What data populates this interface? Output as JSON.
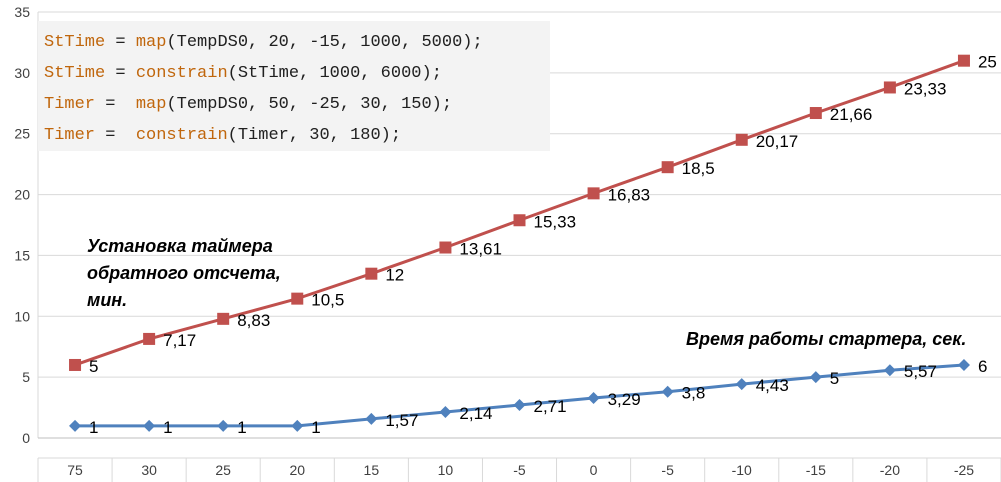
{
  "chart_data": {
    "type": "line",
    "categories": [
      "75",
      "30",
      "25",
      "20",
      "15",
      "10",
      "-5",
      "0",
      "-5",
      "-10",
      "-15",
      "-20",
      "-25"
    ],
    "ylim": [
      0,
      35
    ],
    "y_ticks": [
      "0",
      "5",
      "10",
      "15",
      "20",
      "25",
      "30",
      "35"
    ],
    "grid": "horizontal",
    "series": [
      {
        "name": "Установка таймера обратного отсчета, мин.",
        "color": "#c0504d",
        "marker": "square",
        "values": [
          5,
          7.17,
          8.83,
          10.5,
          12,
          13.61,
          15.33,
          16.83,
          18.5,
          20.17,
          21.66,
          23.33,
          25
        ],
        "labels": [
          "5",
          "7,17",
          "8,83",
          "10,5",
          "12",
          "13,61",
          "15,33",
          "16,83",
          "18,5",
          "20,17",
          "21,66",
          "23,33",
          "25"
        ],
        "y_position": [
          6,
          8.14,
          9.79,
          11.45,
          13.5,
          15.65,
          17.89,
          20.1,
          22.25,
          24.5,
          26.7,
          28.8,
          31
        ]
      },
      {
        "name": "Время работы стартера, сек.",
        "color": "#4f81bd",
        "marker": "diamond",
        "values": [
          1,
          1,
          1,
          1,
          1.57,
          2.14,
          2.71,
          3.29,
          3.8,
          4.43,
          5,
          5.57,
          6
        ],
        "labels": [
          "1",
          "1",
          "1",
          "1",
          "1,57",
          "2,14",
          "2,71",
          "3,29",
          "3,8",
          "4,43",
          "5",
          "5,57",
          "6"
        ]
      }
    ]
  },
  "code_block": {
    "lines": [
      {
        "kw1": "StTime",
        "eq": " = ",
        "kw2": "map",
        "rest": "(TempDS0, 20, -15, 1000, 5000);"
      },
      {
        "kw1": "StTime",
        "eq": " = ",
        "kw2": "constrain",
        "rest": "(StTime, 1000, 6000);"
      },
      {
        "kw1": "Timer",
        "eq": " =  ",
        "kw2": "map",
        "rest": "(TempDS0, 50, -25, 30, 150);"
      },
      {
        "kw1": "Timer",
        "eq": " =  ",
        "kw2": "constrain",
        "rest": "(Timer, 30, 180);"
      }
    ]
  },
  "annotations": {
    "timer_lines": [
      "Установка таймера",
      "обратного отсчета,",
      "мин."
    ],
    "starter": "Время работы стартера, сек."
  }
}
